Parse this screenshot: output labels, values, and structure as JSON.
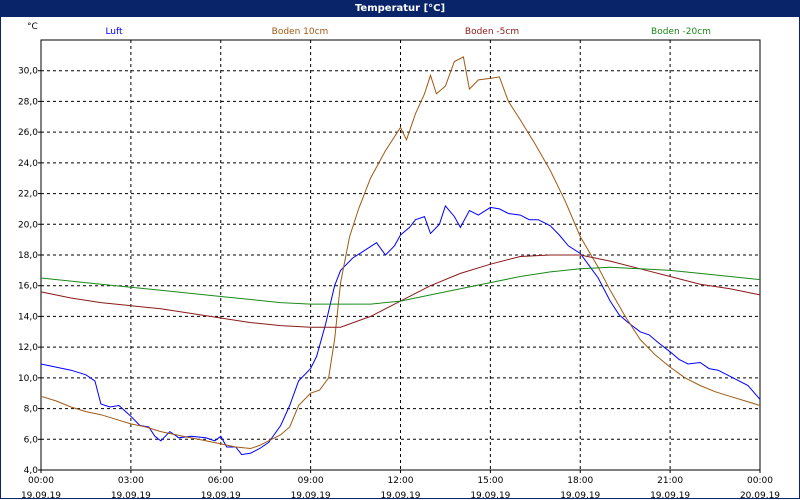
{
  "window": {
    "title": "Temperatur [°C]"
  },
  "colors": {
    "Luft": "#0000ff",
    "Boden 10cm": "#a05a14",
    "Boden -5cm": "#8b1a1a",
    "Boden -20cm": "#1a8a1a",
    "grid": "#000000",
    "titlebar": "#0a246a"
  },
  "chart_data": {
    "type": "line",
    "title": "Temperatur [°C]",
    "ylabel": "°C",
    "ylim": [
      4,
      32
    ],
    "xlim": [
      0,
      24
    ],
    "grid": true,
    "legend_position": "top",
    "x_tick_labels": [
      {
        "x": 0,
        "time": "00:00",
        "date": "19.09.19"
      },
      {
        "x": 3,
        "time": "03:00",
        "date": "19.09.19"
      },
      {
        "x": 6,
        "time": "06:00",
        "date": "19.09.19"
      },
      {
        "x": 9,
        "time": "09:00",
        "date": "19.09.19"
      },
      {
        "x": 12,
        "time": "12:00",
        "date": "19.09.19"
      },
      {
        "x": 15,
        "time": "15:00",
        "date": "19.09.19"
      },
      {
        "x": 18,
        "time": "18:00",
        "date": "19.09.19"
      },
      {
        "x": 21,
        "time": "21:00",
        "date": "19.09.19"
      },
      {
        "x": 24,
        "time": "00:00",
        "date": "20.09.19"
      }
    ],
    "y_ticks": [
      4,
      6,
      8,
      10,
      12,
      14,
      16,
      18,
      20,
      22,
      24,
      26,
      28,
      30
    ],
    "y_tick_labels": [
      "4,0",
      "6,0",
      "8,0",
      "10,0",
      "12,0",
      "14,0",
      "16,0",
      "18,0",
      "20,0",
      "22,0",
      "24,0",
      "26,0",
      "28,0",
      "30,0"
    ],
    "series": [
      {
        "name": "Luft",
        "color": "#0000ff",
        "points": [
          [
            0,
            10.9
          ],
          [
            0.5,
            10.7
          ],
          [
            1,
            10.5
          ],
          [
            1.5,
            10.2
          ],
          [
            1.8,
            9.8
          ],
          [
            2.0,
            8.3
          ],
          [
            2.3,
            8.1
          ],
          [
            2.6,
            8.2
          ],
          [
            3,
            7.5
          ],
          [
            3.3,
            6.9
          ],
          [
            3.6,
            6.8
          ],
          [
            3.8,
            6.2
          ],
          [
            4.0,
            5.9
          ],
          [
            4.3,
            6.5
          ],
          [
            4.6,
            6.1
          ],
          [
            5.0,
            6.2
          ],
          [
            5.5,
            6.1
          ],
          [
            5.8,
            5.9
          ],
          [
            6.0,
            6.2
          ],
          [
            6.2,
            5.5
          ],
          [
            6.5,
            5.5
          ],
          [
            6.7,
            5.0
          ],
          [
            7.0,
            5.1
          ],
          [
            7.3,
            5.4
          ],
          [
            7.6,
            5.8
          ],
          [
            8.0,
            6.9
          ],
          [
            8.3,
            8.2
          ],
          [
            8.6,
            9.8
          ],
          [
            9.0,
            10.6
          ],
          [
            9.2,
            11.4
          ],
          [
            9.5,
            13.5
          ],
          [
            9.8,
            16.0
          ],
          [
            10.0,
            17.0
          ],
          [
            10.4,
            17.8
          ],
          [
            10.8,
            18.3
          ],
          [
            11.2,
            18.8
          ],
          [
            11.5,
            18.0
          ],
          [
            11.8,
            18.6
          ],
          [
            12.0,
            19.3
          ],
          [
            12.3,
            19.8
          ],
          [
            12.5,
            20.3
          ],
          [
            12.8,
            20.5
          ],
          [
            13.0,
            19.4
          ],
          [
            13.3,
            20.0
          ],
          [
            13.5,
            21.2
          ],
          [
            13.8,
            20.5
          ],
          [
            14.0,
            19.8
          ],
          [
            14.3,
            20.9
          ],
          [
            14.6,
            20.6
          ],
          [
            15.0,
            21.1
          ],
          [
            15.3,
            21.0
          ],
          [
            15.6,
            20.7
          ],
          [
            16.0,
            20.6
          ],
          [
            16.3,
            20.3
          ],
          [
            16.6,
            20.3
          ],
          [
            17.0,
            19.9
          ],
          [
            17.3,
            19.3
          ],
          [
            17.6,
            18.6
          ],
          [
            18.0,
            18.1
          ],
          [
            18.3,
            17.3
          ],
          [
            18.6,
            16.5
          ],
          [
            19.0,
            15.0
          ],
          [
            19.3,
            14.1
          ],
          [
            19.6,
            13.6
          ],
          [
            20.0,
            13.0
          ],
          [
            20.3,
            12.8
          ],
          [
            20.6,
            12.3
          ],
          [
            21.0,
            11.7
          ],
          [
            21.3,
            11.2
          ],
          [
            21.6,
            10.9
          ],
          [
            22.0,
            11.0
          ],
          [
            22.3,
            10.6
          ],
          [
            22.6,
            10.5
          ],
          [
            23.0,
            10.1
          ],
          [
            23.3,
            9.8
          ],
          [
            23.6,
            9.5
          ],
          [
            24.0,
            8.6
          ]
        ]
      },
      {
        "name": "Boden 10cm",
        "color": "#a05a14",
        "points": [
          [
            0,
            8.8
          ],
          [
            0.5,
            8.5
          ],
          [
            1,
            8.1
          ],
          [
            1.5,
            7.8
          ],
          [
            2,
            7.6
          ],
          [
            2.5,
            7.3
          ],
          [
            3,
            7.0
          ],
          [
            3.5,
            6.8
          ],
          [
            4,
            6.5
          ],
          [
            4.5,
            6.3
          ],
          [
            5,
            6.1
          ],
          [
            5.5,
            5.9
          ],
          [
            6,
            5.7
          ],
          [
            6.5,
            5.5
          ],
          [
            7,
            5.4
          ],
          [
            7.3,
            5.6
          ],
          [
            7.6,
            5.9
          ],
          [
            8,
            6.3
          ],
          [
            8.3,
            6.8
          ],
          [
            8.6,
            8.2
          ],
          [
            9.0,
            9.0
          ],
          [
            9.3,
            9.2
          ],
          [
            9.6,
            10.0
          ],
          [
            9.8,
            12.5
          ],
          [
            10.0,
            16.2
          ],
          [
            10.3,
            19.2
          ],
          [
            10.6,
            21.0
          ],
          [
            11.0,
            23.0
          ],
          [
            11.5,
            24.8
          ],
          [
            12.0,
            26.3
          ],
          [
            12.2,
            25.5
          ],
          [
            12.5,
            27.2
          ],
          [
            12.8,
            28.5
          ],
          [
            13.0,
            29.7
          ],
          [
            13.2,
            28.5
          ],
          [
            13.5,
            29.0
          ],
          [
            13.8,
            30.6
          ],
          [
            14.1,
            30.9
          ],
          [
            14.3,
            28.8
          ],
          [
            14.6,
            29.4
          ],
          [
            15.0,
            29.5
          ],
          [
            15.3,
            29.6
          ],
          [
            15.6,
            28.0
          ],
          [
            16.0,
            26.8
          ],
          [
            16.5,
            25.2
          ],
          [
            17.0,
            23.5
          ],
          [
            17.5,
            21.5
          ],
          [
            18.0,
            19.2
          ],
          [
            18.3,
            18.2
          ],
          [
            18.6,
            17.2
          ],
          [
            19.0,
            15.7
          ],
          [
            19.5,
            14.0
          ],
          [
            20.0,
            12.5
          ],
          [
            20.5,
            11.5
          ],
          [
            21.0,
            10.7
          ],
          [
            21.5,
            10.0
          ],
          [
            22.0,
            9.5
          ],
          [
            22.5,
            9.1
          ],
          [
            23.0,
            8.8
          ],
          [
            23.5,
            8.5
          ],
          [
            24.0,
            8.2
          ]
        ]
      },
      {
        "name": "Boden -5cm",
        "color": "#8b1a1a",
        "points": [
          [
            0,
            15.6
          ],
          [
            1,
            15.2
          ],
          [
            2,
            14.9
          ],
          [
            3,
            14.7
          ],
          [
            4,
            14.5
          ],
          [
            5,
            14.2
          ],
          [
            6,
            13.9
          ],
          [
            7,
            13.6
          ],
          [
            8,
            13.4
          ],
          [
            9,
            13.3
          ],
          [
            10,
            13.3
          ],
          [
            11,
            14.0
          ],
          [
            12,
            15.0
          ],
          [
            13,
            16.0
          ],
          [
            14,
            16.8
          ],
          [
            15,
            17.4
          ],
          [
            16,
            17.9
          ],
          [
            17,
            18.0
          ],
          [
            18,
            18.0
          ],
          [
            19,
            17.6
          ],
          [
            20,
            17.1
          ],
          [
            21,
            16.6
          ],
          [
            22,
            16.1
          ],
          [
            23,
            15.8
          ],
          [
            24,
            15.4
          ]
        ]
      },
      {
        "name": "Boden -20cm",
        "color": "#1a8a1a",
        "points": [
          [
            0,
            16.5
          ],
          [
            1,
            16.3
          ],
          [
            2,
            16.1
          ],
          [
            3,
            15.9
          ],
          [
            4,
            15.7
          ],
          [
            5,
            15.5
          ],
          [
            6,
            15.3
          ],
          [
            7,
            15.1
          ],
          [
            8,
            14.9
          ],
          [
            9,
            14.8
          ],
          [
            10,
            14.8
          ],
          [
            11,
            14.8
          ],
          [
            12,
            15.0
          ],
          [
            13,
            15.4
          ],
          [
            14,
            15.8
          ],
          [
            15,
            16.2
          ],
          [
            16,
            16.6
          ],
          [
            17,
            16.9
          ],
          [
            18,
            17.1
          ],
          [
            19,
            17.2
          ],
          [
            20,
            17.1
          ],
          [
            21,
            17.0
          ],
          [
            22,
            16.8
          ],
          [
            23,
            16.6
          ],
          [
            24,
            16.4
          ]
        ]
      }
    ]
  }
}
